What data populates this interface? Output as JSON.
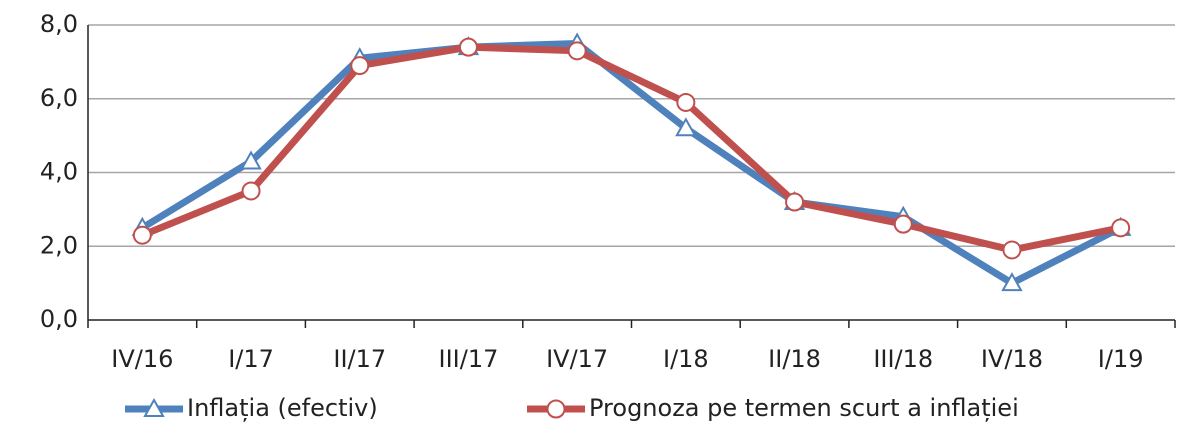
{
  "chart_data": {
    "type": "line",
    "categories": [
      "IV/16",
      "I/17",
      "II/17",
      "III/17",
      "IV/17",
      "I/18",
      "II/18",
      "III/18",
      "IV/18",
      "I/19"
    ],
    "series": [
      {
        "name": "Inflația (efectiv)",
        "color": "#4f81bd",
        "marker": "triangle",
        "values": [
          2.5,
          4.3,
          7.1,
          7.4,
          7.5,
          5.2,
          3.2,
          2.8,
          1.0,
          2.5
        ]
      },
      {
        "name": "Prognoza pe termen scurt a inflației",
        "color": "#c0504d",
        "marker": "circle",
        "values": [
          2.3,
          3.5,
          6.9,
          7.4,
          7.3,
          5.9,
          3.2,
          2.6,
          1.9,
          2.5
        ]
      }
    ],
    "ylim": [
      0,
      8
    ],
    "yticks": [
      {
        "value": 0,
        "label": "0,0"
      },
      {
        "value": 2,
        "label": "2,0"
      },
      {
        "value": 4,
        "label": "4,0"
      },
      {
        "value": 6,
        "label": "6,0"
      },
      {
        "value": 8,
        "label": "8,0"
      }
    ],
    "grid": true,
    "legend": "bottom"
  }
}
